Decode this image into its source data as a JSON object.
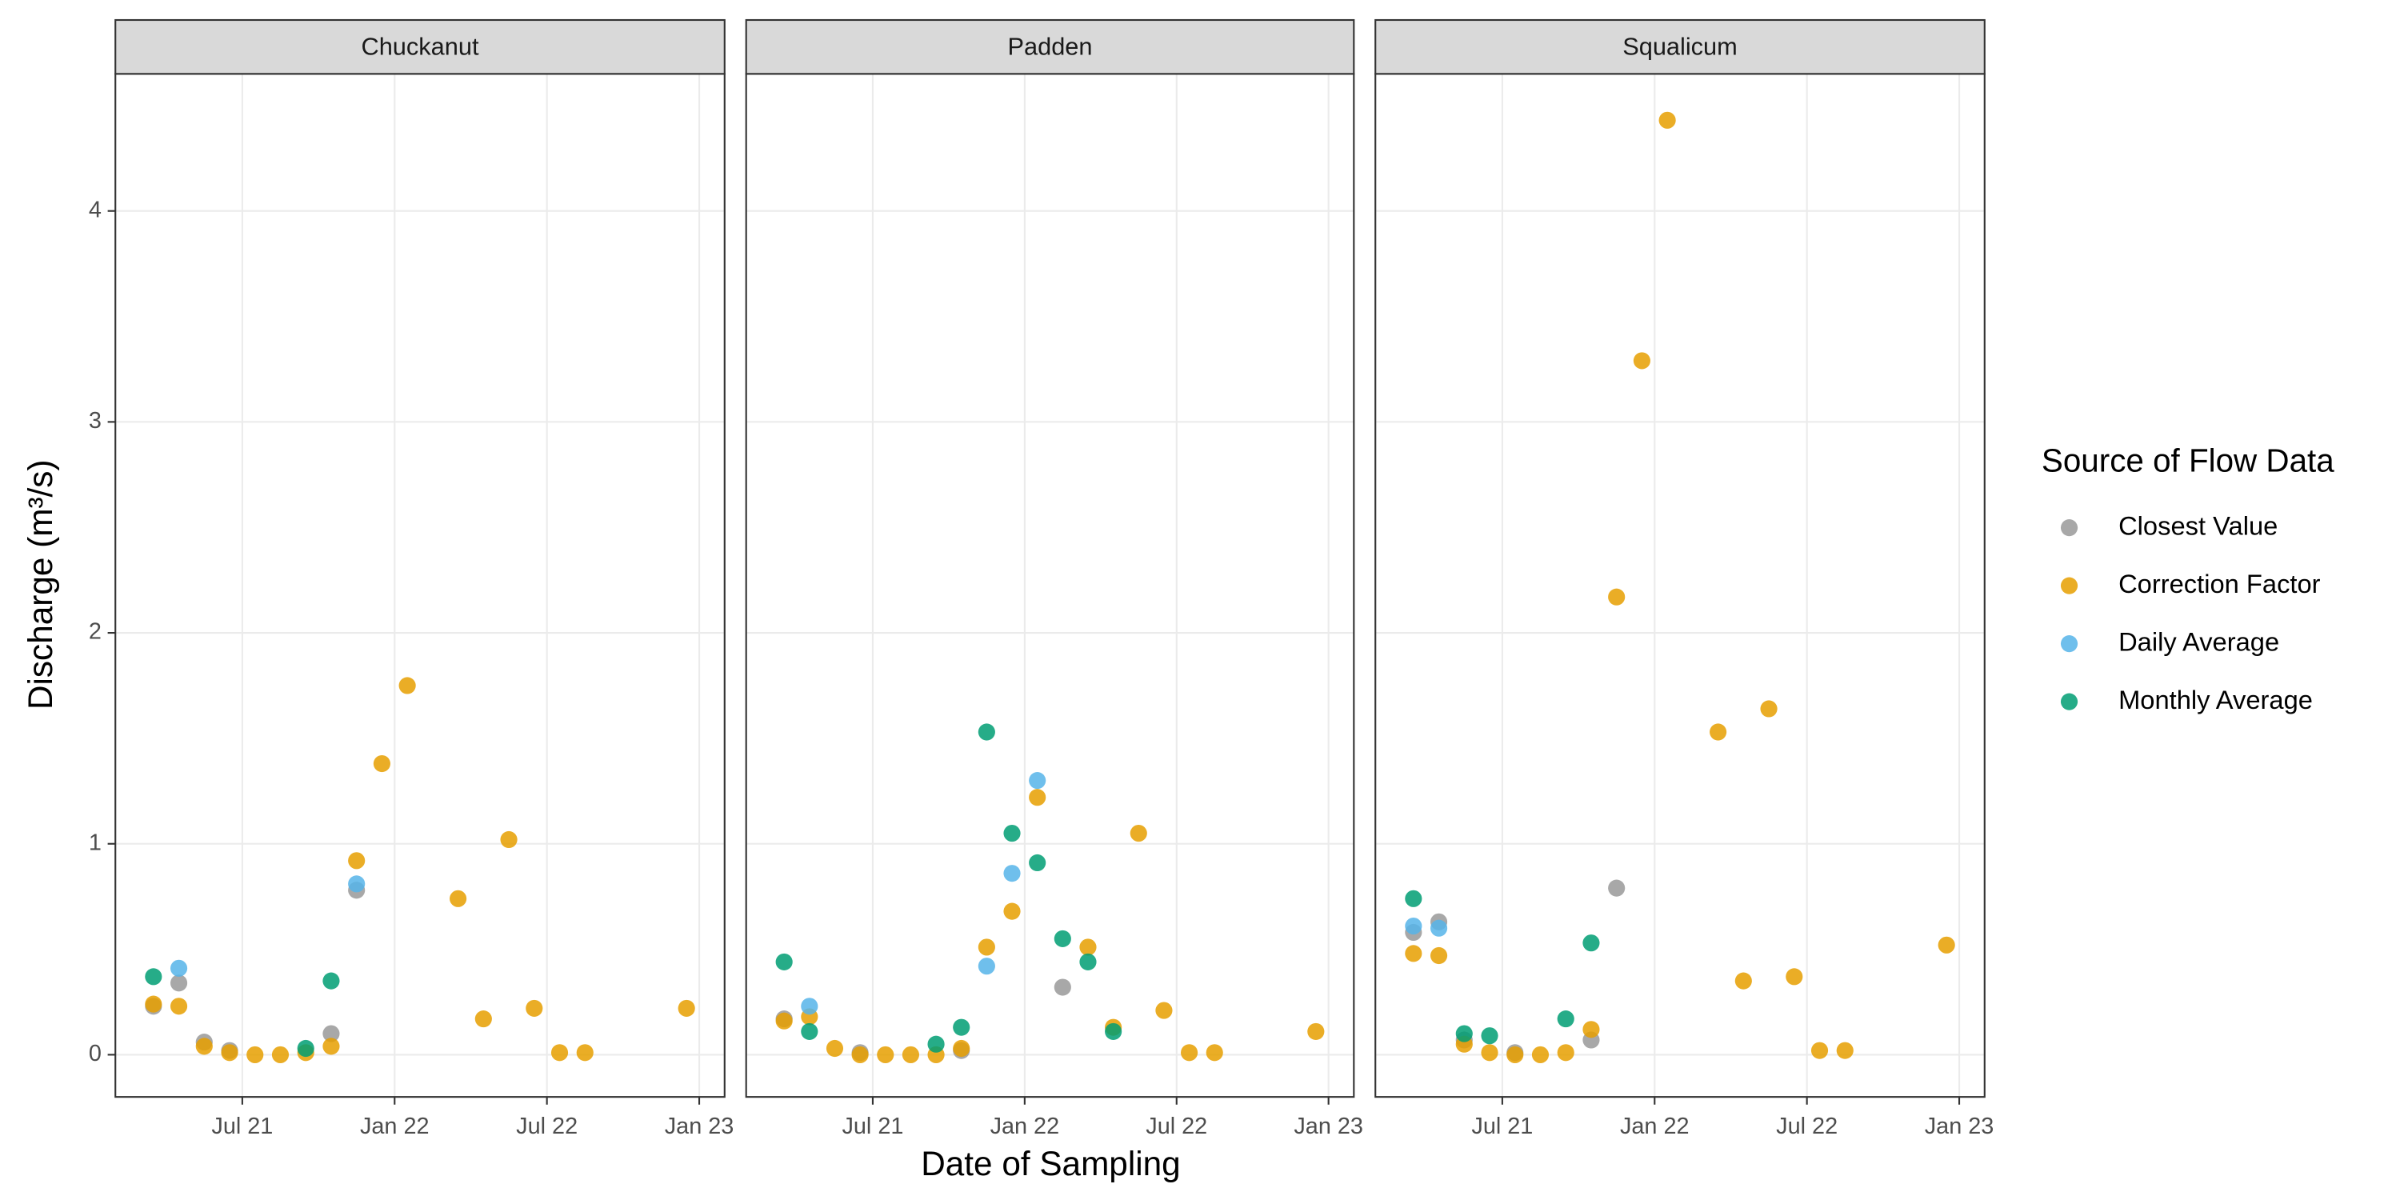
{
  "chart_data": {
    "type": "scatter",
    "x_label": "Date of Sampling",
    "y_label": "Discharge (m³/s)",
    "legend_title": "Source of Flow Data",
    "legend_position": "right",
    "grid": true,
    "xlim": [
      "2021-02",
      "2023-02"
    ],
    "xticks": [
      {
        "value": "2021-07",
        "label": "Jul 21"
      },
      {
        "value": "2022-01",
        "label": "Jan 22"
      },
      {
        "value": "2022-07",
        "label": "Jul 22"
      },
      {
        "value": "2023-01",
        "label": "Jan 23"
      }
    ],
    "ylim": [
      -0.2,
      4.65
    ],
    "yticks": [
      0,
      1,
      2,
      3,
      4
    ],
    "series": [
      {
        "name": "Closest Value",
        "color": "#999999"
      },
      {
        "name": "Correction Factor",
        "color": "#E69F00"
      },
      {
        "name": "Daily Average",
        "color": "#56B4E9"
      },
      {
        "name": "Monthly Average",
        "color": "#009E73"
      }
    ],
    "facets": [
      {
        "title": "Chuckanut",
        "series": [
          {
            "x": [
              "2021-03",
              "2021-04",
              "2021-05",
              "2021-06",
              "2021-10",
              "2021-11"
            ],
            "values": [
              0.23,
              0.34,
              0.06,
              0.02,
              0.1,
              0.78
            ]
          },
          {
            "x": [
              "2021-03",
              "2021-04",
              "2021-05",
              "2021-06",
              "2021-07",
              "2021-08",
              "2021-09",
              "2021-10",
              "2021-11",
              "2021-12",
              "2022-01",
              "2022-03",
              "2022-04",
              "2022-05",
              "2022-06",
              "2022-07",
              "2022-08",
              "2022-12"
            ],
            "values": [
              0.24,
              0.23,
              0.04,
              0.01,
              0.0,
              0.0,
              0.01,
              0.04,
              0.92,
              1.38,
              1.75,
              0.74,
              0.17,
              1.02,
              0.22,
              0.01,
              0.01,
              0.22
            ]
          },
          {
            "x": [
              "2021-04",
              "2021-11"
            ],
            "values": [
              0.41,
              0.81
            ]
          },
          {
            "x": [
              "2021-03",
              "2021-09",
              "2021-10"
            ],
            "values": [
              0.37,
              0.03,
              0.35
            ]
          }
        ]
      },
      {
        "title": "Padden",
        "series": [
          {
            "x": [
              "2021-03",
              "2021-06",
              "2021-10",
              "2022-02"
            ],
            "values": [
              0.17,
              0.01,
              0.02,
              0.32
            ]
          },
          {
            "x": [
              "2021-03",
              "2021-04",
              "2021-05",
              "2021-06",
              "2021-07",
              "2021-08",
              "2021-09",
              "2021-10",
              "2021-11",
              "2021-12",
              "2022-01",
              "2022-03",
              "2022-04",
              "2022-05",
              "2022-06",
              "2022-07",
              "2022-08",
              "2022-12"
            ],
            "values": [
              0.16,
              0.18,
              0.03,
              0.0,
              0.0,
              0.0,
              0.0,
              0.03,
              0.51,
              0.68,
              1.22,
              0.51,
              0.13,
              1.05,
              0.21,
              0.01,
              0.01,
              0.11
            ]
          },
          {
            "x": [
              "2021-04",
              "2021-11",
              "2021-12",
              "2022-01"
            ],
            "values": [
              0.23,
              0.42,
              0.86,
              1.3
            ]
          },
          {
            "x": [
              "2021-03",
              "2021-04",
              "2021-09",
              "2021-10",
              "2021-11",
              "2021-12",
              "2022-01",
              "2022-02",
              "2022-03",
              "2022-04"
            ],
            "values": [
              0.44,
              0.11,
              0.05,
              0.13,
              1.53,
              1.05,
              0.91,
              0.55,
              0.44,
              0.11
            ]
          }
        ]
      },
      {
        "title": "Squalicum",
        "series": [
          {
            "x": [
              "2021-03",
              "2021-04",
              "2021-05",
              "2021-07",
              "2021-10",
              "2021-11"
            ],
            "values": [
              0.58,
              0.63,
              0.07,
              0.01,
              0.07,
              0.79
            ]
          },
          {
            "x": [
              "2021-03",
              "2021-04",
              "2021-05",
              "2021-06",
              "2021-07",
              "2021-08",
              "2021-09",
              "2021-10",
              "2021-11",
              "2021-12",
              "2022-01",
              "2022-03",
              "2022-04",
              "2022-05",
              "2022-06",
              "2022-07",
              "2022-08",
              "2022-12"
            ],
            "values": [
              0.48,
              0.47,
              0.05,
              0.01,
              0.0,
              0.0,
              0.01,
              0.12,
              2.17,
              3.29,
              4.43,
              1.53,
              0.35,
              1.64,
              0.37,
              0.02,
              0.02,
              0.52
            ]
          },
          {
            "x": [
              "2021-03",
              "2021-04"
            ],
            "values": [
              0.61,
              0.6
            ]
          },
          {
            "x": [
              "2021-03",
              "2021-05",
              "2021-06",
              "2021-09",
              "2021-10"
            ],
            "values": [
              0.74,
              0.1,
              0.09,
              0.17,
              0.53
            ]
          }
        ]
      }
    ]
  }
}
